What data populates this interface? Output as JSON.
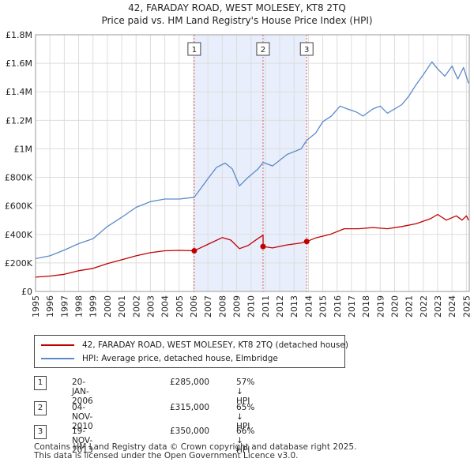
{
  "chart_data": {
    "type": "line",
    "title": "42, FARADAY ROAD, WEST MOLESEY, KT8 2TQ",
    "subtitle": "Price paid vs. HM Land Registry's House Price Index (HPI)",
    "xlim": [
      1995,
      2025.2
    ],
    "ylim": [
      0,
      1800000
    ],
    "x_ticks": [
      "1995",
      "1996",
      "1997",
      "1998",
      "1999",
      "2000",
      "2001",
      "2002",
      "2003",
      "2004",
      "2005",
      "2006",
      "2007",
      "2008",
      "2009",
      "2010",
      "2011",
      "2012",
      "2013",
      "2014",
      "2015",
      "2016",
      "2017",
      "2018",
      "2019",
      "2020",
      "2021",
      "2022",
      "2023",
      "2024",
      "2025"
    ],
    "y_ticks": [
      {
        "value": 0,
        "label": "£0"
      },
      {
        "value": 200000,
        "label": "£200K"
      },
      {
        "value": 400000,
        "label": "£400K"
      },
      {
        "value": 600000,
        "label": "£600K"
      },
      {
        "value": 800000,
        "label": "£800K"
      },
      {
        "value": 1000000,
        "label": "£1M"
      },
      {
        "value": 1200000,
        "label": "£1.2M"
      },
      {
        "value": 1400000,
        "label": "£1.4M"
      },
      {
        "value": 1600000,
        "label": "£1.6M"
      },
      {
        "value": 1800000,
        "label": "£1.8M"
      }
    ],
    "grid": true,
    "shaded_period": [
      2006.05,
      2013.88
    ],
    "series": [
      {
        "name": "42, FARADAY ROAD, WEST MOLESEY, KT8 2TQ (detached house)",
        "color": "#c00000",
        "points": [
          [
            1995.0,
            100000
          ],
          [
            1996.0,
            108000
          ],
          [
            1997.0,
            120000
          ],
          [
            1998.0,
            145000
          ],
          [
            1999.0,
            162000
          ],
          [
            2000.0,
            195000
          ],
          [
            2001.0,
            222000
          ],
          [
            2002.0,
            250000
          ],
          [
            2003.0,
            272000
          ],
          [
            2004.0,
            285000
          ],
          [
            2005.0,
            288000
          ],
          [
            2006.05,
            285000
          ],
          [
            2007.0,
            330000
          ],
          [
            2008.0,
            378000
          ],
          [
            2008.6,
            360000
          ],
          [
            2009.2,
            300000
          ],
          [
            2009.8,
            322000
          ],
          [
            2010.5,
            372000
          ],
          [
            2010.84,
            395000
          ],
          [
            2010.85,
            315000
          ],
          [
            2011.5,
            305000
          ],
          [
            2012.5,
            326000
          ],
          [
            2013.5,
            340000
          ],
          [
            2013.88,
            350000
          ],
          [
            2014.5,
            375000
          ],
          [
            2015.5,
            400000
          ],
          [
            2016.5,
            440000
          ],
          [
            2017.5,
            440000
          ],
          [
            2018.5,
            448000
          ],
          [
            2019.5,
            440000
          ],
          [
            2020.5,
            455000
          ],
          [
            2021.5,
            475000
          ],
          [
            2022.5,
            510000
          ],
          [
            2023.0,
            540000
          ],
          [
            2023.6,
            500000
          ],
          [
            2024.3,
            530000
          ],
          [
            2024.7,
            500000
          ],
          [
            2025.0,
            530000
          ],
          [
            2025.15,
            500000
          ]
        ]
      },
      {
        "name": "HPI: Average price, detached house, Elmbridge",
        "color": "#5b8ac9",
        "points": [
          [
            1995.0,
            230000
          ],
          [
            1996.0,
            250000
          ],
          [
            1997.0,
            290000
          ],
          [
            1998.0,
            335000
          ],
          [
            1999.0,
            370000
          ],
          [
            2000.0,
            455000
          ],
          [
            2001.0,
            520000
          ],
          [
            2002.0,
            590000
          ],
          [
            2003.0,
            630000
          ],
          [
            2004.0,
            648000
          ],
          [
            2005.0,
            648000
          ],
          [
            2006.05,
            660000
          ],
          [
            2007.0,
            790000
          ],
          [
            2007.6,
            870000
          ],
          [
            2008.2,
            900000
          ],
          [
            2008.7,
            860000
          ],
          [
            2009.2,
            740000
          ],
          [
            2009.8,
            800000
          ],
          [
            2010.5,
            860000
          ],
          [
            2010.84,
            905000
          ],
          [
            2011.5,
            880000
          ],
          [
            2012.5,
            960000
          ],
          [
            2013.5,
            1000000
          ],
          [
            2013.88,
            1060000
          ],
          [
            2014.5,
            1110000
          ],
          [
            2015.0,
            1190000
          ],
          [
            2015.6,
            1230000
          ],
          [
            2016.2,
            1300000
          ],
          [
            2016.7,
            1280000
          ],
          [
            2017.3,
            1260000
          ],
          [
            2017.8,
            1230000
          ],
          [
            2018.5,
            1280000
          ],
          [
            2019.0,
            1300000
          ],
          [
            2019.5,
            1250000
          ],
          [
            2020.0,
            1280000
          ],
          [
            2020.5,
            1310000
          ],
          [
            2021.0,
            1370000
          ],
          [
            2021.5,
            1450000
          ],
          [
            2022.0,
            1520000
          ],
          [
            2022.6,
            1610000
          ],
          [
            2023.0,
            1560000
          ],
          [
            2023.5,
            1510000
          ],
          [
            2024.0,
            1580000
          ],
          [
            2024.4,
            1490000
          ],
          [
            2024.8,
            1570000
          ],
          [
            2025.15,
            1460000
          ]
        ]
      }
    ],
    "transactions": [
      {
        "num": "1",
        "date": "20-JAN-2006",
        "x": 2006.05,
        "price": 285000,
        "price_label": "£285,000",
        "hpi": "57% ↓ HPI"
      },
      {
        "num": "2",
        "date": "04-NOV-2010",
        "x": 2010.84,
        "price": 315000,
        "price_label": "£315,000",
        "hpi": "65% ↓ HPI"
      },
      {
        "num": "3",
        "date": "19-NOV-2013",
        "x": 2013.88,
        "price": 350000,
        "price_label": "£350,000",
        "hpi": "66% ↓ HPI"
      }
    ]
  },
  "legend": {
    "property_label": "42, FARADAY ROAD, WEST MOLESEY, KT8 2TQ (detached house)",
    "hpi_label": "HPI: Average price, detached house, Elmbridge",
    "property_color": "#c00000",
    "hpi_color": "#5b8ac9"
  },
  "footer": {
    "line1": "Contains HM Land Registry data © Crown copyright and database right 2025.",
    "line2": "This data is licensed under the Open Government Licence v3.0."
  }
}
